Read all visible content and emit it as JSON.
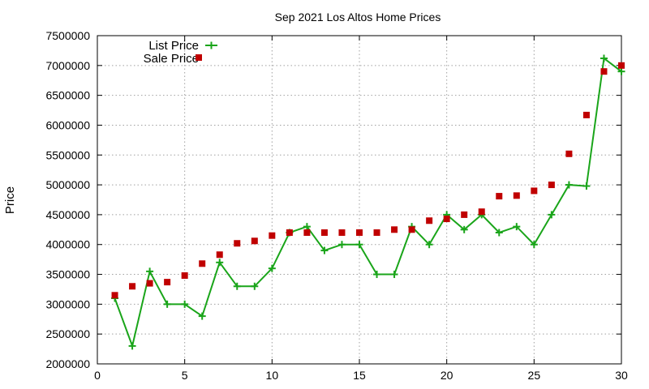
{
  "chart_data": {
    "type": "line",
    "title": "Sep 2021 Los Altos Home Prices",
    "xlabel": "",
    "ylabel": "Price",
    "xlim": [
      0,
      30
    ],
    "ylim": [
      2000000,
      7500000
    ],
    "x_ticks": [
      0,
      5,
      10,
      15,
      20,
      25,
      30
    ],
    "y_ticks": [
      2000000,
      2500000,
      3000000,
      3500000,
      4000000,
      4500000,
      5000000,
      5500000,
      6000000,
      6500000,
      7000000,
      7500000
    ],
    "grid": true,
    "legend_position": "top-left",
    "series": [
      {
        "name": "List Price",
        "style": "line-with-plus-markers",
        "color": "#1aa51a",
        "x": [
          1,
          2,
          3,
          4,
          5,
          6,
          7,
          8,
          9,
          10,
          11,
          12,
          13,
          14,
          15,
          16,
          17,
          18,
          19,
          20,
          21,
          22,
          23,
          24,
          25,
          26,
          27,
          28,
          29,
          30
        ],
        "y": [
          3100000,
          2300000,
          3550000,
          3000000,
          3000000,
          2800000,
          3700000,
          3300000,
          3300000,
          3600000,
          4200000,
          4300000,
          3900000,
          4000000,
          4000000,
          3500000,
          3500000,
          4300000,
          4000000,
          4500000,
          4250000,
          4500000,
          4200000,
          4300000,
          4000000,
          4500000,
          5000000,
          4980000,
          7120000,
          6900000
        ]
      },
      {
        "name": "Sale Price",
        "style": "square-markers",
        "color": "#c00000",
        "x": [
          1,
          2,
          3,
          4,
          5,
          6,
          7,
          8,
          9,
          10,
          11,
          12,
          13,
          14,
          15,
          16,
          17,
          18,
          19,
          20,
          21,
          22,
          23,
          24,
          25,
          26,
          27,
          28,
          29,
          30
        ],
        "y": [
          3150000,
          3300000,
          3350000,
          3370000,
          3480000,
          3680000,
          3830000,
          4020000,
          4060000,
          4150000,
          4200000,
          4200000,
          4200000,
          4200000,
          4200000,
          4200000,
          4250000,
          4250000,
          4400000,
          4430000,
          4500000,
          4550000,
          4810000,
          4820000,
          4900000,
          5000000,
          5520000,
          6170000,
          6900000,
          7000000
        ]
      }
    ]
  }
}
